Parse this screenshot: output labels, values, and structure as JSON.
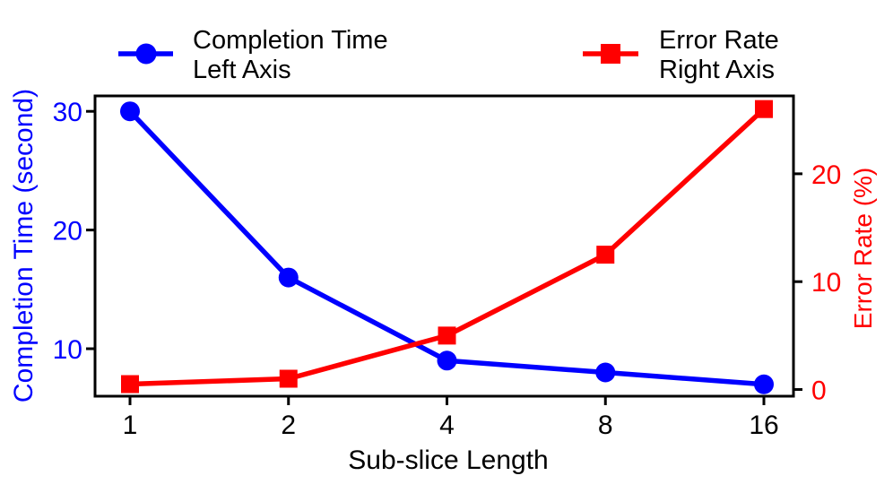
{
  "legend": {
    "items": [
      {
        "line1": "Completion Time",
        "line2": "Left Axis",
        "marker": "circle",
        "color": "#0000ff"
      },
      {
        "line1": "Error Rate",
        "line2": "Right Axis",
        "marker": "square",
        "color": "#ff0000"
      }
    ]
  },
  "chart_data": {
    "type": "line",
    "x": {
      "label": "Sub-slice Length",
      "categories": [
        "1",
        "2",
        "4",
        "8",
        "16"
      ],
      "scale": "log2-categorical",
      "tick_color": "#000000"
    },
    "series": [
      {
        "name": "Completion Time",
        "axis": "left",
        "marker": "circle",
        "color": "#0000ff",
        "values": [
          30,
          16,
          9,
          8,
          7
        ]
      },
      {
        "name": "Error Rate",
        "axis": "right",
        "marker": "square",
        "color": "#ff0000",
        "values": [
          0.5,
          1,
          5,
          12.5,
          26
        ]
      }
    ],
    "left_axis": {
      "label": "Completion Time (second)",
      "ticks": [
        10,
        20,
        30
      ],
      "range": [
        6.0,
        31.3
      ],
      "color": "#0000ff"
    },
    "right_axis": {
      "label": "Error Rate (%)",
      "ticks": [
        0,
        10,
        20
      ],
      "range": [
        -0.62,
        27.22
      ],
      "color": "#ff0000"
    },
    "grid": false,
    "legend_position": "top",
    "frame_color": "#000000"
  }
}
